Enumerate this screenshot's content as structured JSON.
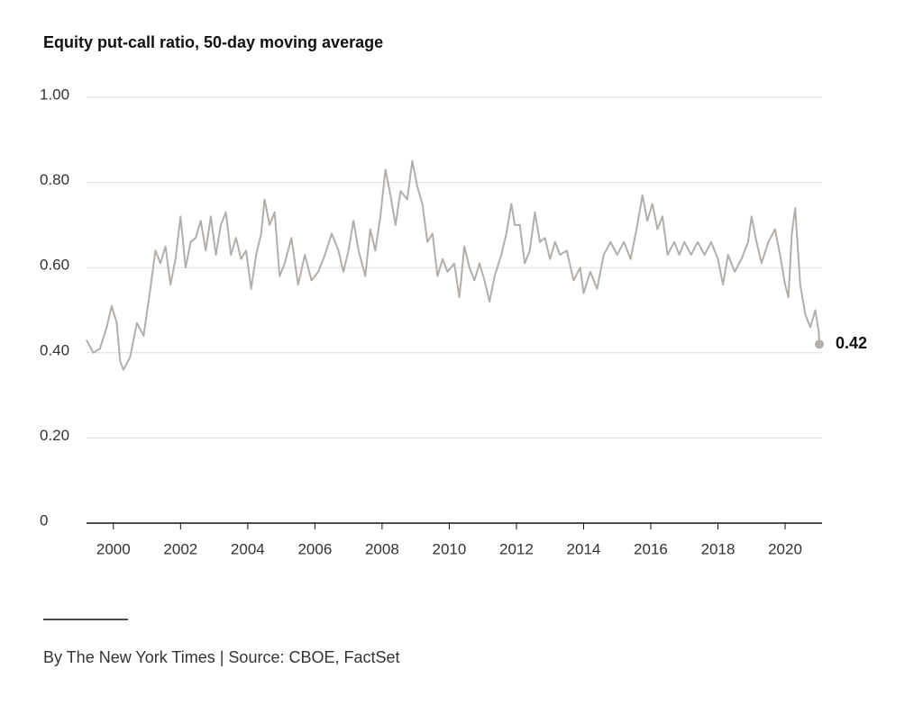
{
  "chart_data": {
    "type": "line",
    "title": "Equity put-call ratio, 50-day moving average",
    "source": "By The New York Times | Source: CBOE, FactSet",
    "series": [
      {
        "name": "Equity put-call ratio",
        "color": "#b3aeaa",
        "x": [
          1999.2,
          1999.4,
          1999.6,
          1999.8,
          1999.95,
          2000.1,
          2000.2,
          2000.3,
          2000.5,
          2000.7,
          2000.9,
          2001.1,
          2001.25,
          2001.4,
          2001.55,
          2001.7,
          2001.85,
          2002.0,
          2002.15,
          2002.3,
          2002.45,
          2002.6,
          2002.75,
          2002.9,
          2003.05,
          2003.2,
          2003.35,
          2003.5,
          2003.65,
          2003.8,
          2003.95,
          2004.1,
          2004.25,
          2004.4,
          2004.5,
          2004.65,
          2004.8,
          2004.95,
          2005.1,
          2005.3,
          2005.5,
          2005.7,
          2005.9,
          2006.1,
          2006.3,
          2006.5,
          2006.7,
          2006.85,
          2007.0,
          2007.15,
          2007.3,
          2007.5,
          2007.65,
          2007.8,
          2007.95,
          2008.1,
          2008.25,
          2008.4,
          2008.55,
          2008.75,
          2008.9,
          2009.05,
          2009.2,
          2009.35,
          2009.5,
          2009.65,
          2009.8,
          2009.95,
          2010.15,
          2010.3,
          2010.45,
          2010.6,
          2010.75,
          2010.9,
          2011.05,
          2011.2,
          2011.35,
          2011.55,
          2011.7,
          2011.85,
          2011.95,
          2012.1,
          2012.25,
          2012.4,
          2012.55,
          2012.7,
          2012.85,
          2013.0,
          2013.15,
          2013.3,
          2013.5,
          2013.7,
          2013.9,
          2014.0,
          2014.2,
          2014.4,
          2014.6,
          2014.8,
          2015.0,
          2015.2,
          2015.4,
          2015.6,
          2015.75,
          2015.9,
          2016.05,
          2016.2,
          2016.35,
          2016.5,
          2016.7,
          2016.85,
          2017.0,
          2017.2,
          2017.4,
          2017.6,
          2017.8,
          2018.0,
          2018.15,
          2018.3,
          2018.5,
          2018.7,
          2018.9,
          2019.0,
          2019.15,
          2019.3,
          2019.5,
          2019.7,
          2019.85,
          2020.0,
          2020.1,
          2020.2,
          2020.3,
          2020.45,
          2020.6,
          2020.75,
          2020.9,
          2021.0,
          2021.02
        ],
        "values": [
          0.43,
          0.4,
          0.41,
          0.46,
          0.51,
          0.47,
          0.38,
          0.36,
          0.39,
          0.47,
          0.44,
          0.55,
          0.64,
          0.61,
          0.65,
          0.56,
          0.62,
          0.72,
          0.6,
          0.66,
          0.67,
          0.71,
          0.64,
          0.72,
          0.63,
          0.7,
          0.73,
          0.63,
          0.67,
          0.62,
          0.64,
          0.55,
          0.63,
          0.68,
          0.76,
          0.7,
          0.73,
          0.58,
          0.61,
          0.67,
          0.56,
          0.63,
          0.57,
          0.59,
          0.63,
          0.68,
          0.64,
          0.59,
          0.64,
          0.71,
          0.64,
          0.58,
          0.69,
          0.64,
          0.72,
          0.83,
          0.77,
          0.7,
          0.78,
          0.76,
          0.85,
          0.79,
          0.75,
          0.66,
          0.68,
          0.58,
          0.62,
          0.59,
          0.61,
          0.53,
          0.65,
          0.6,
          0.57,
          0.61,
          0.57,
          0.52,
          0.58,
          0.63,
          0.68,
          0.75,
          0.7,
          0.7,
          0.61,
          0.64,
          0.73,
          0.66,
          0.67,
          0.62,
          0.66,
          0.63,
          0.64,
          0.57,
          0.6,
          0.54,
          0.59,
          0.55,
          0.63,
          0.66,
          0.63,
          0.66,
          0.62,
          0.7,
          0.77,
          0.71,
          0.75,
          0.69,
          0.72,
          0.63,
          0.66,
          0.63,
          0.66,
          0.63,
          0.66,
          0.63,
          0.66,
          0.62,
          0.56,
          0.63,
          0.59,
          0.62,
          0.66,
          0.72,
          0.66,
          0.61,
          0.66,
          0.69,
          0.63,
          0.56,
          0.53,
          0.68,
          0.74,
          0.56,
          0.49,
          0.46,
          0.5,
          0.45,
          0.42
        ]
      }
    ],
    "xlim": [
      1999.2,
      2021.1
    ],
    "xticks": [
      2000,
      2002,
      2004,
      2006,
      2008,
      2010,
      2012,
      2014,
      2016,
      2018,
      2020
    ],
    "ylim": [
      0,
      1
    ],
    "yticks": [
      0,
      {
        "value": 0.2,
        "label": "0.20"
      },
      {
        "value": 0.4,
        "label": "0.40"
      },
      {
        "value": 0.6,
        "label": "0.60"
      },
      {
        "value": 0.8,
        "label": "0.80"
      },
      {
        "value": 1,
        "label": "1.00"
      }
    ],
    "grid": true
  }
}
